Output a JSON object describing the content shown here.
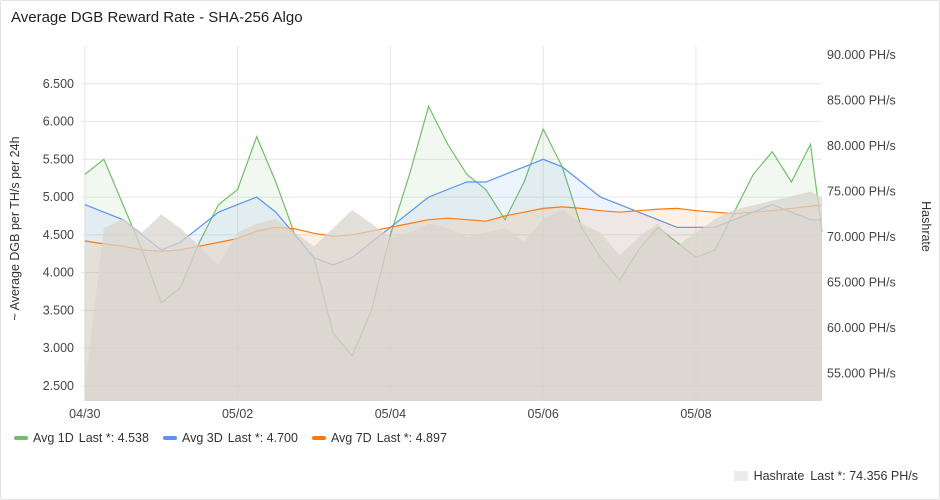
{
  "panel": {
    "title": "Average DGB Reward Rate - SHA-256 Algo"
  },
  "chart_data": {
    "type": "line",
    "title": "Average DGB Reward Rate - SHA-256 Algo",
    "ylabel": "~ Average DGB per TH/s per 24h",
    "ylabel_right": "Hashrate",
    "ylim": [
      2.3,
      7.0
    ],
    "ylim_right": [
      52000,
      91000
    ],
    "yticks": [
      "2.500",
      "3.000",
      "3.500",
      "4.000",
      "4.500",
      "5.000",
      "5.500",
      "6.000",
      "6.500"
    ],
    "yticks_values": [
      2.5,
      3.0,
      3.5,
      4.0,
      4.5,
      5.0,
      5.5,
      6.0,
      6.5
    ],
    "yticks_right": [
      "55.000 PH/s",
      "60.000 PH/s",
      "65.000 PH/s",
      "70.000 PH/s",
      "75.000 PH/s",
      "80.000 PH/s",
      "85.000 PH/s",
      "90.000 PH/s"
    ],
    "yticks_right_values": [
      55000,
      60000,
      65000,
      70000,
      75000,
      80000,
      85000,
      90000
    ],
    "x_range_days": [
      -0.05,
      9.65
    ],
    "xticks": [
      "04/30",
      "05/02",
      "05/04",
      "05/06",
      "05/08"
    ],
    "xticks_values": [
      0,
      2,
      4,
      6,
      8
    ],
    "grid": true,
    "legend_position": "bottom",
    "series": [
      {
        "name": "Avg 1D",
        "color": "#73bf69",
        "axis": "left",
        "last_label": "Last *: 4.538",
        "x": [
          0,
          0.25,
          0.5,
          0.75,
          1.0,
          1.25,
          1.5,
          1.75,
          2.0,
          2.25,
          2.5,
          2.75,
          3.0,
          3.25,
          3.5,
          3.75,
          4.0,
          4.25,
          4.5,
          4.75,
          5.0,
          5.25,
          5.5,
          5.75,
          6.0,
          6.25,
          6.5,
          6.75,
          7.0,
          7.25,
          7.5,
          7.75,
          8.0,
          8.25,
          8.5,
          8.75,
          9.0,
          9.25,
          9.5,
          9.65
        ],
        "values": [
          5.3,
          5.5,
          4.9,
          4.3,
          3.6,
          3.8,
          4.4,
          4.9,
          5.1,
          5.8,
          5.2,
          4.5,
          4.2,
          3.2,
          2.9,
          3.5,
          4.5,
          5.3,
          6.2,
          5.7,
          5.3,
          5.1,
          4.7,
          5.2,
          5.9,
          5.4,
          4.6,
          4.2,
          3.9,
          4.3,
          4.6,
          4.4,
          4.2,
          4.3,
          4.8,
          5.3,
          5.6,
          5.2,
          5.7,
          4.54
        ]
      },
      {
        "name": "Avg 3D",
        "color": "#5794f2",
        "axis": "left",
        "last_label": "Last *: 4.700",
        "x": [
          0,
          0.25,
          0.5,
          0.75,
          1.0,
          1.25,
          1.5,
          1.75,
          2.0,
          2.25,
          2.5,
          2.75,
          3.0,
          3.25,
          3.5,
          3.75,
          4.0,
          4.25,
          4.5,
          4.75,
          5.0,
          5.25,
          5.5,
          5.75,
          6.0,
          6.25,
          6.5,
          6.75,
          7.0,
          7.25,
          7.5,
          7.75,
          8.0,
          8.25,
          8.5,
          8.75,
          9.0,
          9.25,
          9.5,
          9.65
        ],
        "values": [
          4.9,
          4.8,
          4.7,
          4.5,
          4.3,
          4.4,
          4.6,
          4.8,
          4.9,
          5.0,
          4.8,
          4.5,
          4.2,
          4.1,
          4.2,
          4.4,
          4.6,
          4.8,
          5.0,
          5.1,
          5.2,
          5.2,
          5.3,
          5.4,
          5.5,
          5.4,
          5.2,
          5.0,
          4.9,
          4.8,
          4.7,
          4.6,
          4.6,
          4.6,
          4.7,
          4.8,
          4.9,
          4.8,
          4.7,
          4.7
        ]
      },
      {
        "name": "Avg 7D",
        "color": "#ff780a",
        "axis": "left",
        "last_label": "Last *: 4.897",
        "x": [
          0,
          0.25,
          0.5,
          0.75,
          1.0,
          1.25,
          1.5,
          1.75,
          2.0,
          2.25,
          2.5,
          2.75,
          3.0,
          3.25,
          3.5,
          3.75,
          4.0,
          4.25,
          4.5,
          4.75,
          5.0,
          5.25,
          5.5,
          5.75,
          6.0,
          6.25,
          6.5,
          6.75,
          7.0,
          7.25,
          7.5,
          7.75,
          8.0,
          8.25,
          8.5,
          8.75,
          9.0,
          9.25,
          9.5,
          9.65
        ],
        "values": [
          4.42,
          4.38,
          4.35,
          4.3,
          4.28,
          4.3,
          4.35,
          4.4,
          4.45,
          4.55,
          4.6,
          4.58,
          4.52,
          4.48,
          4.5,
          4.55,
          4.6,
          4.65,
          4.7,
          4.72,
          4.7,
          4.68,
          4.75,
          4.8,
          4.85,
          4.87,
          4.85,
          4.82,
          4.8,
          4.82,
          4.84,
          4.85,
          4.82,
          4.8,
          4.78,
          4.8,
          4.82,
          4.85,
          4.88,
          4.897
        ]
      },
      {
        "name": "Hashrate",
        "color": "#d9d4ce",
        "axis": "right",
        "last_label": "Last *: 74.356 PH/s",
        "x": [
          0,
          0.25,
          0.5,
          0.75,
          1.0,
          1.25,
          1.5,
          1.75,
          2.0,
          2.25,
          2.5,
          2.75,
          3.0,
          3.25,
          3.5,
          3.75,
          4.0,
          4.25,
          4.5,
          4.75,
          5.0,
          5.25,
          5.5,
          5.75,
          6.0,
          6.25,
          6.5,
          6.75,
          7.0,
          7.25,
          7.5,
          7.75,
          8.0,
          8.25,
          8.5,
          8.75,
          9.0,
          9.25,
          9.5,
          9.65
        ],
        "values": [
          53500,
          71000,
          72000,
          70500,
          72500,
          71000,
          69000,
          67000,
          70500,
          71500,
          72000,
          70500,
          69000,
          71000,
          73000,
          71500,
          70000,
          70500,
          71500,
          71000,
          70000,
          70500,
          71000,
          69500,
          72000,
          73000,
          71500,
          70500,
          68000,
          70000,
          71500,
          69000,
          70500,
          72000,
          73000,
          73500,
          74000,
          74500,
          75000,
          74356
        ]
      }
    ]
  },
  "legend": {
    "items": [
      {
        "label": "Avg 1D",
        "last": "Last *: 4.538"
      },
      {
        "label": "Avg 3D",
        "last": "Last *: 4.700"
      },
      {
        "label": "Avg 7D",
        "last": "Last *: 4.897"
      }
    ],
    "hashrate": {
      "label": "Hashrate",
      "last": "Last *: 74.356 PH/s"
    }
  }
}
